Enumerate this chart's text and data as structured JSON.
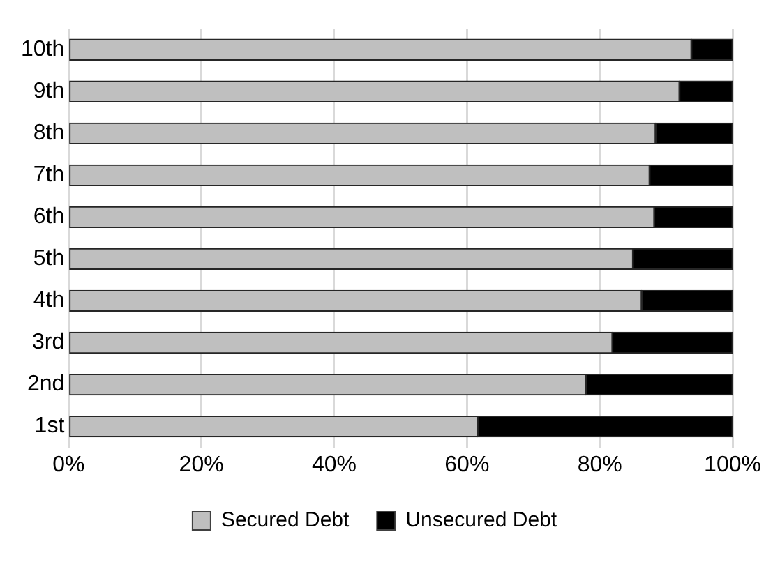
{
  "chart_data": {
    "type": "bar",
    "orientation": "horizontal",
    "stacked": true,
    "categories": [
      "10th",
      "9th",
      "8th",
      "7th",
      "6th",
      "5th",
      "4th",
      "3rd",
      "2nd",
      "1st"
    ],
    "series": [
      {
        "name": "Secured Debt",
        "color": "#bfbfbf",
        "values": [
          93.8,
          92.0,
          88.4,
          87.5,
          88.2,
          85.0,
          86.3,
          81.9,
          77.9,
          61.6
        ]
      },
      {
        "name": "Unsecured Debt",
        "color": "#000000",
        "values": [
          6.2,
          8.0,
          11.6,
          12.5,
          11.8,
          15.0,
          13.7,
          18.1,
          22.1,
          38.4
        ]
      }
    ],
    "xlim": [
      0,
      100
    ],
    "xticks": [
      {
        "value": 0,
        "label": "0%"
      },
      {
        "value": 20,
        "label": "20%"
      },
      {
        "value": 40,
        "label": "40%"
      },
      {
        "value": 60,
        "label": "60%"
      },
      {
        "value": 80,
        "label": "80%"
      },
      {
        "value": 100,
        "label": "100%"
      }
    ],
    "grid": "x",
    "legend": "bottom"
  }
}
